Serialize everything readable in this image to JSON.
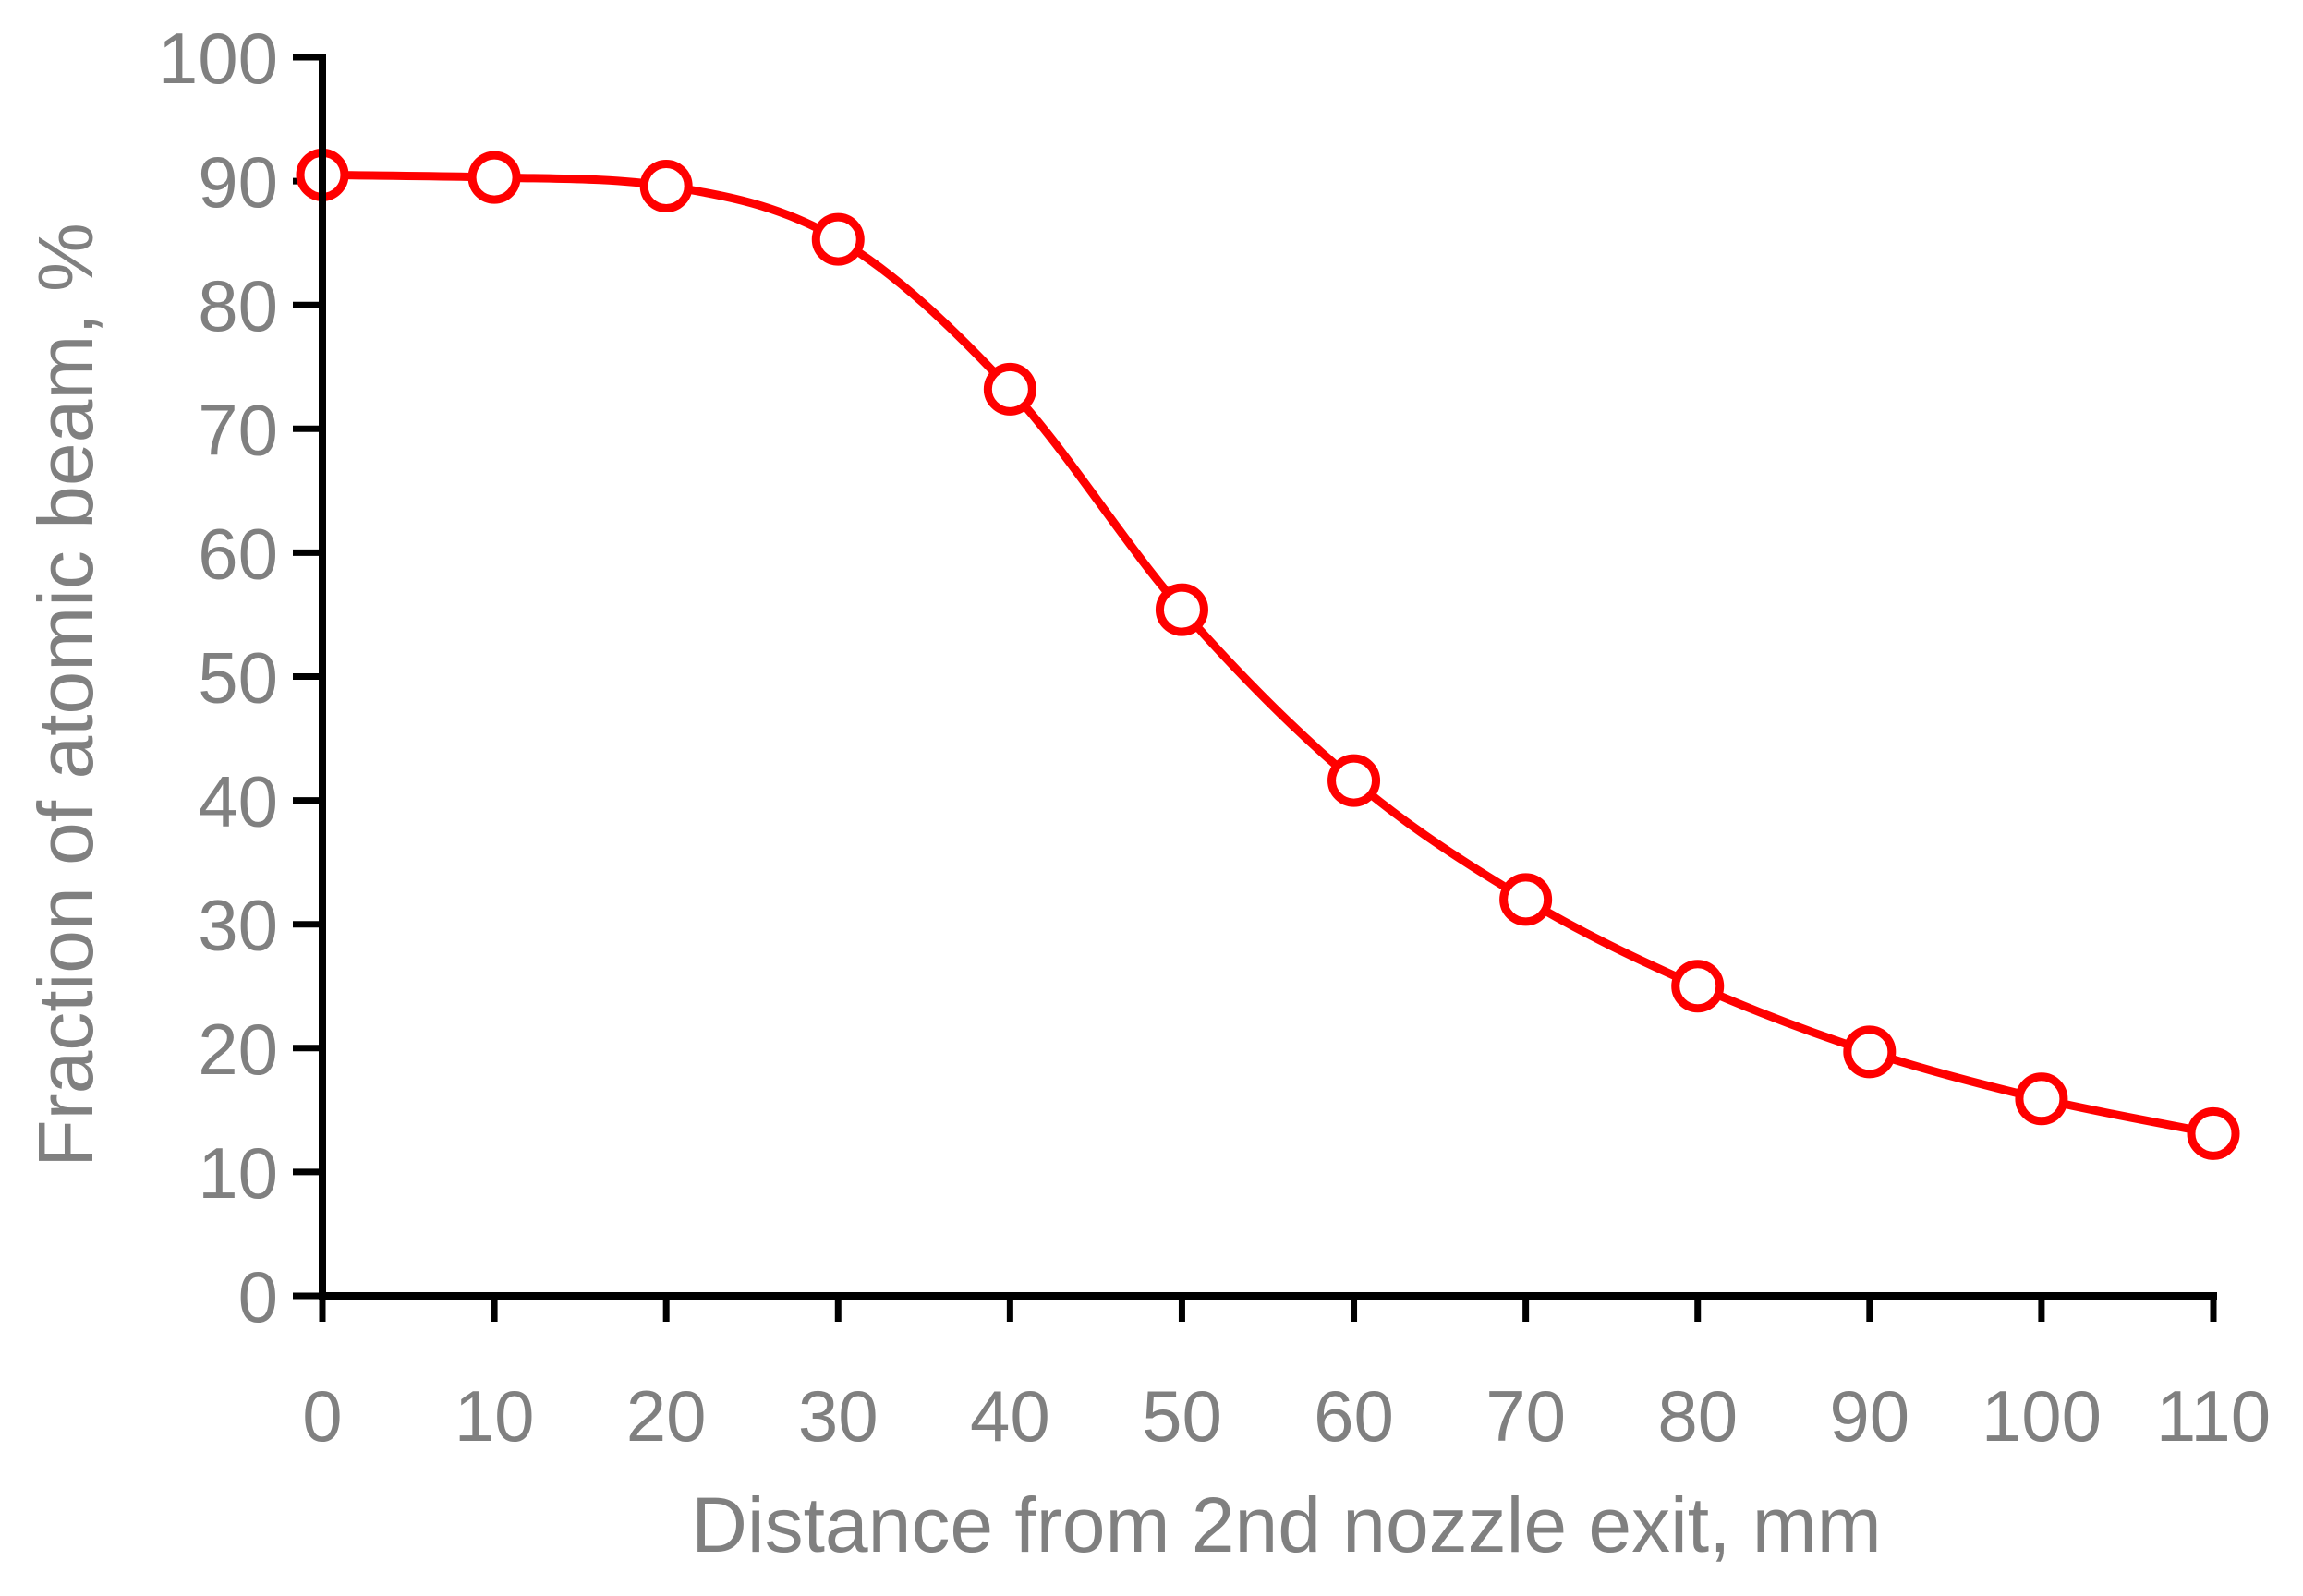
{
  "chart_data": {
    "type": "line",
    "title": "",
    "xlabel": "Distance from 2nd nozzle exit, mm",
    "ylabel": "Fraction of atomic beam, %",
    "xlim": [
      0,
      110
    ],
    "ylim": [
      0,
      100
    ],
    "xticks": [
      0,
      10,
      20,
      30,
      40,
      50,
      60,
      70,
      80,
      90,
      100,
      110
    ],
    "yticks": [
      0,
      10,
      20,
      30,
      40,
      50,
      60,
      70,
      80,
      90,
      100
    ],
    "grid": false,
    "smooth": true,
    "marker": "open-circle",
    "series": [
      {
        "color": "#ff0000",
        "x": [
          0,
          10,
          20,
          30,
          40,
          50,
          60,
          70,
          80,
          90,
          100,
          110
        ],
        "y": [
          90.5,
          90.3,
          89.6,
          85.3,
          73.2,
          55.4,
          41.6,
          32.0,
          25.0,
          19.7,
          15.9,
          13.1
        ]
      }
    ]
  }
}
